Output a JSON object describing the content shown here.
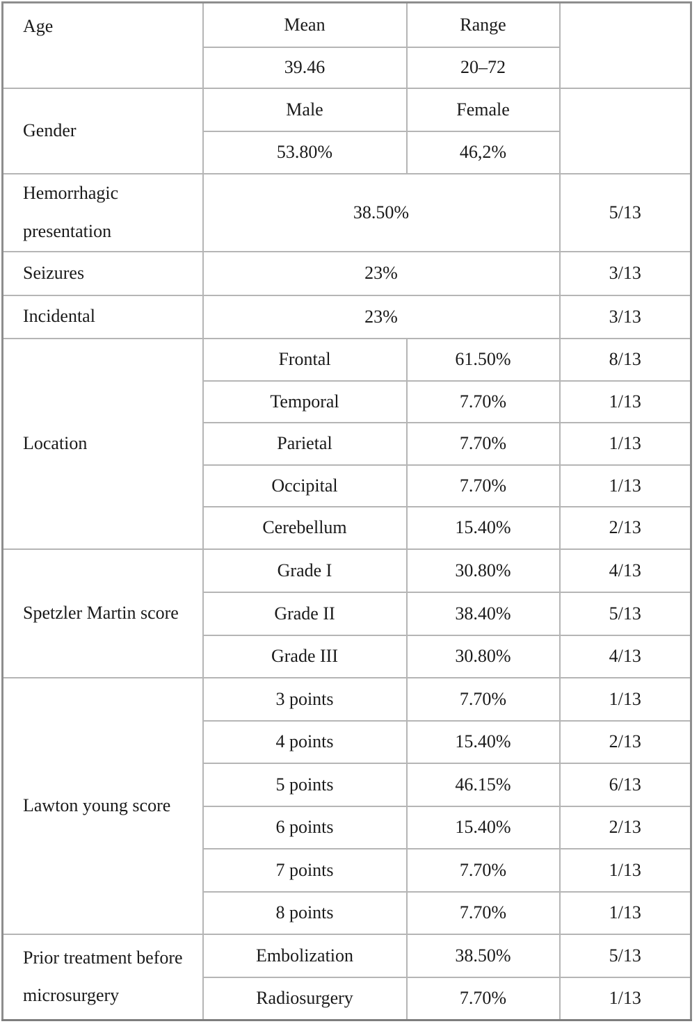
{
  "table": {
    "denominator_note": "13",
    "sections": [
      {
        "kind": "pair",
        "label": "Age",
        "label_valign": "top",
        "rows": [
          [
            "Mean",
            "Range"
          ],
          [
            "39.46",
            "20–72"
          ]
        ],
        "right": ""
      },
      {
        "kind": "pair",
        "label": "Gender",
        "label_valign": "middle",
        "rows": [
          [
            "Male",
            "Female"
          ],
          [
            "53.80%",
            "46,2%"
          ]
        ],
        "right": ""
      },
      {
        "kind": "single",
        "label": "Hemorrhagic presentation",
        "value": "38.50%",
        "count": "5/13"
      },
      {
        "kind": "single",
        "label": "Seizures",
        "value": "23%",
        "count": "3/13"
      },
      {
        "kind": "single",
        "label": "Incidental",
        "value": "23%",
        "count": "3/13"
      },
      {
        "kind": "list",
        "label": "Location",
        "items": [
          {
            "name": "Frontal",
            "pct": "61.50%",
            "count": "8/13"
          },
          {
            "name": "Temporal",
            "pct": "7.70%",
            "count": "1/13"
          },
          {
            "name": "Parietal",
            "pct": "7.70%",
            "count": "1/13"
          },
          {
            "name": "Occipital",
            "pct": "7.70%",
            "count": "1/13"
          },
          {
            "name": "Cerebellum",
            "pct": "15.40%",
            "count": "2/13"
          }
        ]
      },
      {
        "kind": "list",
        "label": "Spetzler Martin score",
        "items": [
          {
            "name": "Grade I",
            "pct": "30.80%",
            "count": "4/13"
          },
          {
            "name": "Grade II",
            "pct": "38.40%",
            "count": "5/13"
          },
          {
            "name": "Grade III",
            "pct": "30.80%",
            "count": "4/13"
          }
        ]
      },
      {
        "kind": "list",
        "label": "Lawton young score",
        "items": [
          {
            "name": "3 points",
            "pct": "7.70%",
            "count": "1/13"
          },
          {
            "name": "4 points",
            "pct": "15.40%",
            "count": "2/13"
          },
          {
            "name": "5 points",
            "pct": "46.15%",
            "count": "6/13"
          },
          {
            "name": "6 points",
            "pct": "15.40%",
            "count": "2/13"
          },
          {
            "name": "7 points",
            "pct": "7.70%",
            "count": "1/13"
          },
          {
            "name": "8 points",
            "pct": "7.70%",
            "count": "1/13"
          }
        ]
      },
      {
        "kind": "list",
        "label": "Prior treatment before microsurgery",
        "items": [
          {
            "name": "Embolization",
            "pct": "38.50%",
            "count": "5/13"
          },
          {
            "name": "Radiosurgery",
            "pct": "7.70%",
            "count": "1/13"
          }
        ]
      }
    ]
  }
}
